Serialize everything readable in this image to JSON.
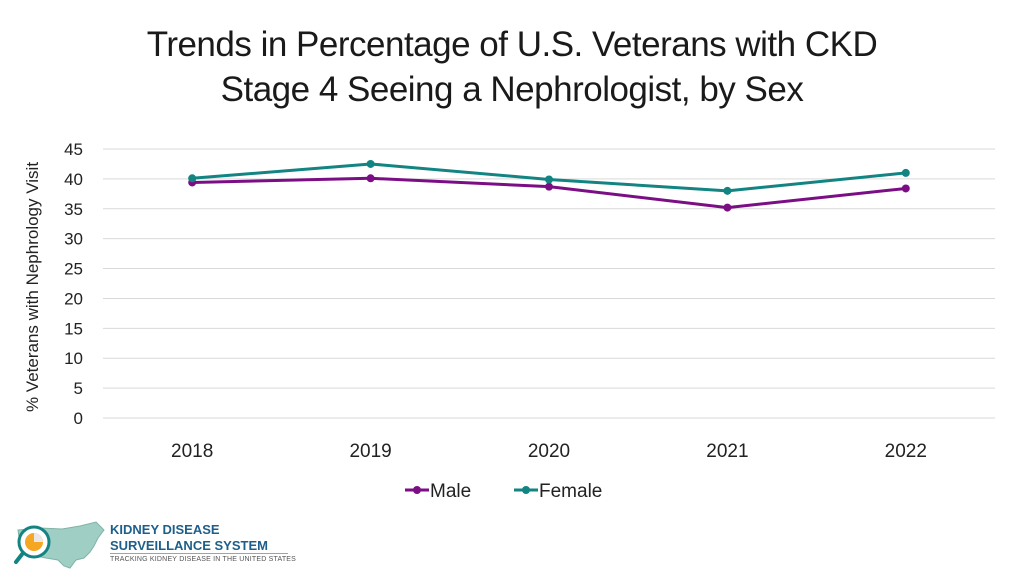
{
  "page": {
    "title_line1": "Trends in Percentage of U.S. Veterans with CKD",
    "title_line2": "Stage 4 Seeing a Nephrologist, by Sex"
  },
  "chart_data": {
    "type": "line",
    "title": "Trends in Percentage of U.S. Veterans with CKD Stage 4 Seeing a Nephrologist, by Sex",
    "categories": [
      "2018",
      "2019",
      "2020",
      "2021",
      "2022"
    ],
    "series": [
      {
        "name": "Male",
        "color": "#7b0e84",
        "values": [
          39.4,
          40.1,
          38.7,
          35.2,
          38.4
        ]
      },
      {
        "name": "Female",
        "color": "#128482",
        "values": [
          40.1,
          42.5,
          39.9,
          38.0,
          41.0
        ]
      }
    ],
    "ylabel": "% Veterans with Nephrology Visit",
    "xlabel": "",
    "ylim": [
      0,
      45
    ],
    "yticks": [
      0,
      5,
      10,
      15,
      20,
      25,
      30,
      35,
      40,
      45
    ],
    "grid": true,
    "legend": "bottom"
  },
  "logo": {
    "line1": "KIDNEY DISEASE",
    "line2": "SURVEILLANCE SYSTEM",
    "tagline": "TRACKING KIDNEY DISEASE IN THE UNITED STATES"
  }
}
